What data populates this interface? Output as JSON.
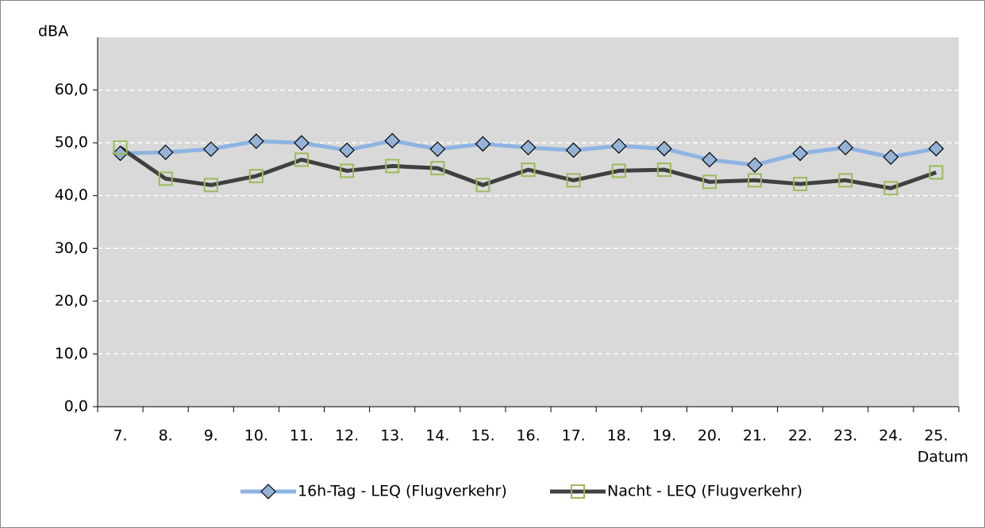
{
  "chart_data": {
    "type": "line",
    "y_label": "dBA",
    "x_label": "Datum",
    "categories": [
      "7.",
      "8.",
      "9.",
      "10.",
      "11.",
      "12.",
      "13.",
      "14.",
      "15.",
      "16.",
      "17.",
      "18.",
      "19.",
      "20.",
      "21.",
      "22.",
      "23.",
      "24.",
      "25."
    ],
    "series": [
      {
        "name": "16h-Tag - LEQ (Flugverkehr)",
        "color": "#8db4e2",
        "marker": "diamond",
        "marker_color": "#95b3d7",
        "values": [
          48.0,
          48.2,
          48.8,
          50.3,
          50.0,
          48.6,
          50.4,
          48.8,
          49.8,
          49.1,
          48.6,
          49.4,
          48.9,
          46.8,
          45.8,
          48.0,
          49.1,
          47.3,
          48.9
        ]
      },
      {
        "name": "Nacht - LEQ (Flugverkehr)",
        "color": "#404040",
        "marker": "square",
        "marker_color": "#9bbb59",
        "values": [
          49.1,
          43.2,
          42.0,
          43.7,
          46.8,
          44.7,
          45.6,
          45.2,
          42.0,
          44.9,
          42.9,
          44.7,
          44.9,
          42.6,
          42.9,
          42.2,
          42.9,
          41.4,
          44.4
        ]
      }
    ],
    "ylim": [
      0,
      70
    ],
    "yticks": [
      {
        "value": 0,
        "label": "0,0"
      },
      {
        "value": 10,
        "label": "10,0"
      },
      {
        "value": 20,
        "label": "20,0"
      },
      {
        "value": 30,
        "label": "30,0"
      },
      {
        "value": 40,
        "label": "40,0"
      },
      {
        "value": 50,
        "label": "50,0"
      },
      {
        "value": 60,
        "label": "60,0"
      }
    ],
    "grid": true,
    "legend": "bottom"
  }
}
